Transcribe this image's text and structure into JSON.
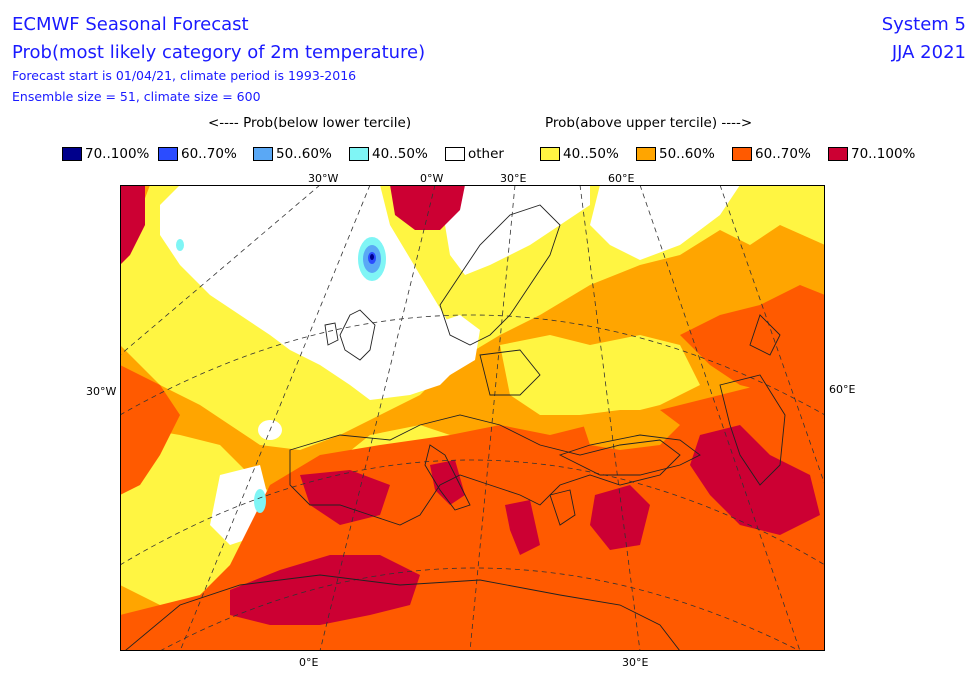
{
  "header": {
    "title": "ECMWF Seasonal Forecast",
    "subtitle": "Prob(most likely category of 2m temperature)",
    "line3": "Forecast start is 01/04/21, climate period is 1993-2016",
    "line4": "Ensemble size = 51, climate size = 600",
    "system": "System 5",
    "period": "JJA 2021"
  },
  "legend": {
    "below_label": "<---- Prob(below lower tercile)",
    "above_label": "Prob(above upper tercile) ---->",
    "items": [
      {
        "label": "70..100%",
        "color": "#00008b"
      },
      {
        "label": "60..70%",
        "color": "#2b4cff"
      },
      {
        "label": "50..60%",
        "color": "#5aa8f5"
      },
      {
        "label": "40..50%",
        "color": "#7ff5f5"
      },
      {
        "label": "other",
        "color": "#ffffff"
      },
      {
        "label": "40..50%",
        "color": "#fff542"
      },
      {
        "label": "50..60%",
        "color": "#ffa500"
      },
      {
        "label": "60..70%",
        "color": "#ff5a00"
      },
      {
        "label": "70..100%",
        "color": "#cc0033"
      }
    ]
  },
  "axes": {
    "top": [
      "30°W",
      "0°W",
      "30°E",
      "60°E"
    ],
    "left": "30°W",
    "right": "60°E",
    "bottom": [
      "0°E",
      "30°E"
    ]
  }
}
